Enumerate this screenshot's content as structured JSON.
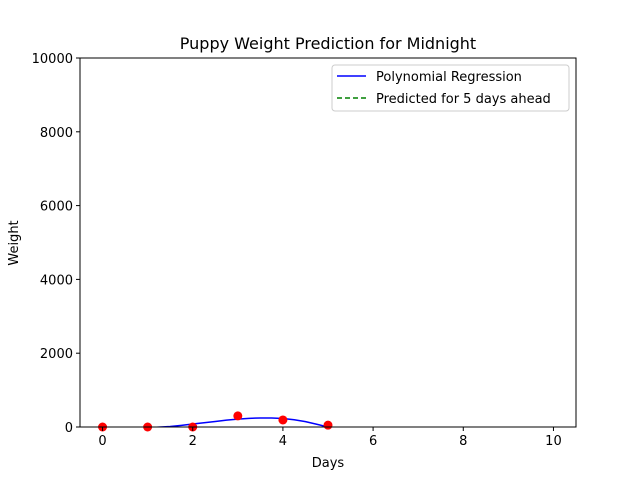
{
  "chart_data": {
    "type": "line",
    "title": "Puppy Weight Prediction for Midnight",
    "xlabel": "Days",
    "ylabel": "Weight",
    "xlim": [
      -0.5,
      10.5
    ],
    "ylim": [
      0,
      10000
    ],
    "xticks": [
      0,
      2,
      4,
      6,
      8,
      10
    ],
    "yticks": [
      0,
      2000,
      4000,
      6000,
      8000,
      10000
    ],
    "grid": false,
    "legend_position": "top-right",
    "scatter": {
      "color": "#ff0000",
      "points": [
        {
          "x": 0,
          "y": 0
        },
        {
          "x": 1,
          "y": 0
        },
        {
          "x": 2,
          "y": 0
        },
        {
          "x": 3,
          "y": 300
        },
        {
          "x": 4,
          "y": 190
        },
        {
          "x": 5,
          "y": 50
        }
      ]
    },
    "series": [
      {
        "name": "Polynomial Regression",
        "color": "#0000ff",
        "style": "solid",
        "x": [
          1.0,
          1.25,
          1.5,
          1.75,
          2.0,
          2.25,
          2.5,
          2.75,
          3.0,
          3.25,
          3.5,
          3.75,
          4.0,
          4.25,
          4.5,
          4.75,
          5.0
        ],
        "y": [
          -20,
          -5,
          15,
          45,
          80,
          115,
          150,
          185,
          215,
          235,
          245,
          245,
          230,
          195,
          145,
          75,
          0
        ]
      },
      {
        "name": "Predicted for 5 days ahead",
        "color": "#008000",
        "style": "dashed",
        "x": [],
        "y": []
      }
    ]
  }
}
